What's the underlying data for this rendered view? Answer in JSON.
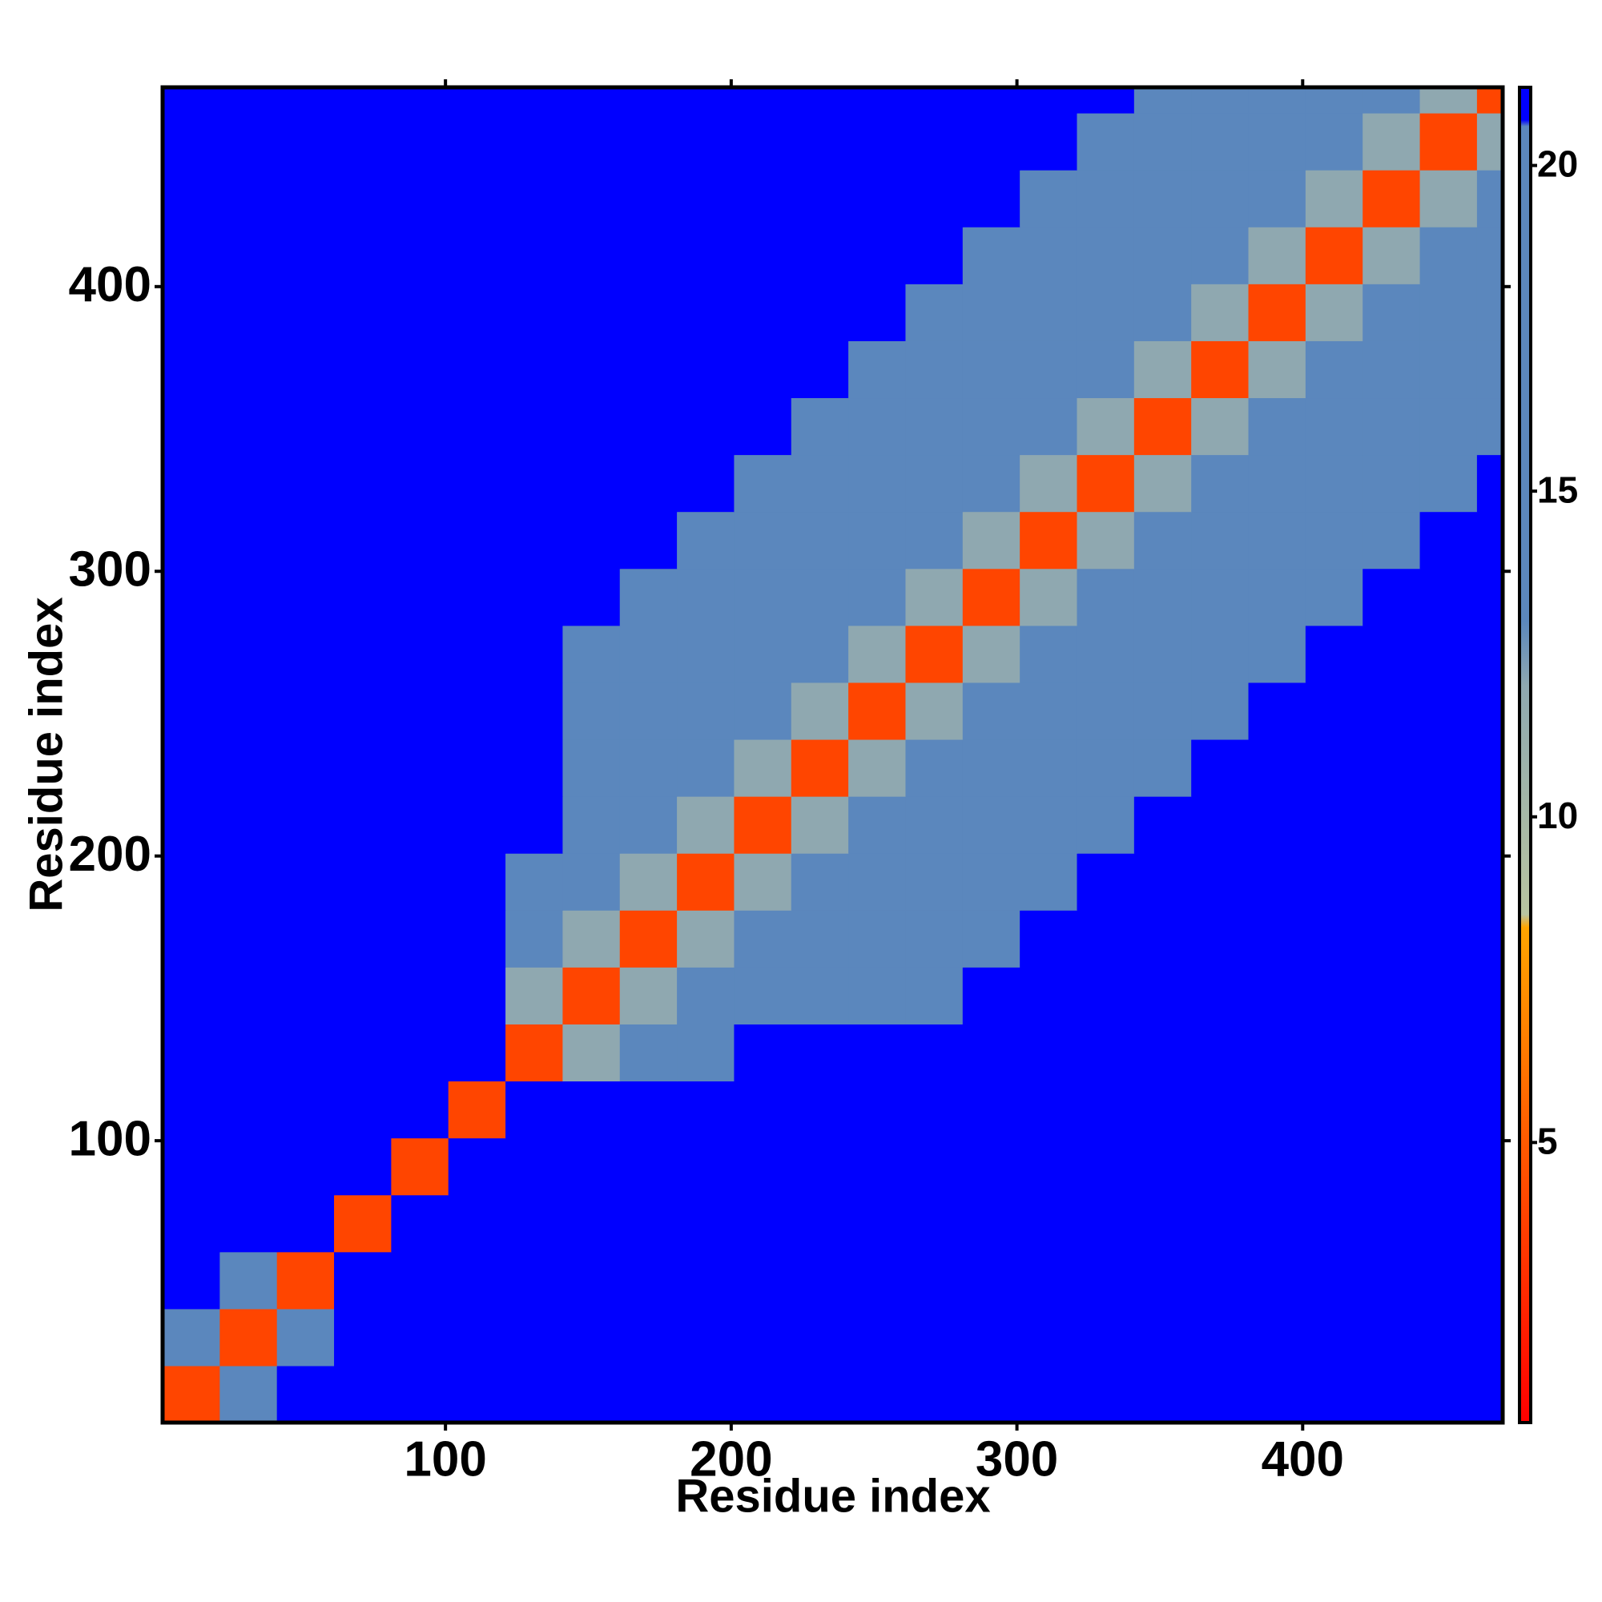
{
  "chart_data": {
    "type": "heatmap",
    "xlabel": "Residue index",
    "ylabel": "Residue index",
    "x_bins": [
      1,
      21,
      41,
      61,
      81,
      101,
      121,
      141,
      161,
      181,
      201,
      221,
      241,
      261,
      281,
      301,
      321,
      341,
      361,
      381,
      401,
      421,
      441,
      461,
      470
    ],
    "y_bins": [
      1,
      21,
      41,
      61,
      81,
      101,
      121,
      141,
      161,
      181,
      201,
      221,
      241,
      261,
      281,
      301,
      321,
      341,
      361,
      381,
      401,
      421,
      441,
      461,
      470
    ],
    "xlim": [
      1,
      470
    ],
    "ylim": [
      1,
      470
    ],
    "xticks": [
      100,
      200,
      300,
      400
    ],
    "yticks": [
      100,
      200,
      300,
      400
    ],
    "zlim": [
      0.7,
      21.2
    ],
    "zticks": [
      5,
      10,
      15,
      20
    ],
    "colorscale": [
      {
        "value": 0.7,
        "color": "#ff0000"
      },
      {
        "value": 5,
        "color": "#ff5a00"
      },
      {
        "value": 8.3,
        "color": "#ffa500"
      },
      {
        "value": 8.5,
        "color": "#b8c4a0"
      },
      {
        "value": 12,
        "color": "#8fa8b0"
      },
      {
        "value": 13,
        "color": "#5b87bd"
      },
      {
        "value": 20.6,
        "color": "#5b87bd"
      },
      {
        "value": 20.7,
        "color": "#0000ff"
      },
      {
        "value": 21.2,
        "color": "#0000ff"
      }
    ],
    "z": [
      [
        4,
        18,
        21,
        21,
        21,
        21,
        21,
        21,
        21,
        21,
        21,
        21,
        21,
        21,
        21,
        21,
        21,
        21,
        21,
        21,
        21,
        21,
        21,
        21
      ],
      [
        18,
        4,
        18,
        21,
        21,
        21,
        21,
        21,
        21,
        21,
        21,
        21,
        21,
        21,
        21,
        21,
        21,
        21,
        21,
        21,
        21,
        21,
        21,
        21
      ],
      [
        21,
        18,
        4,
        21,
        21,
        21,
        21,
        21,
        21,
        21,
        21,
        21,
        21,
        21,
        21,
        21,
        21,
        21,
        21,
        21,
        21,
        21,
        21,
        21
      ],
      [
        21,
        21,
        21,
        4,
        21,
        21,
        21,
        21,
        21,
        21,
        21,
        21,
        21,
        21,
        21,
        21,
        21,
        21,
        21,
        21,
        21,
        21,
        21,
        21
      ],
      [
        21,
        21,
        21,
        21,
        4,
        21,
        21,
        21,
        21,
        21,
        21,
        21,
        21,
        21,
        21,
        21,
        21,
        21,
        21,
        21,
        21,
        21,
        21,
        21
      ],
      [
        21,
        21,
        21,
        21,
        21,
        4,
        21,
        21,
        21,
        21,
        21,
        21,
        21,
        21,
        21,
        21,
        21,
        21,
        21,
        21,
        21,
        21,
        21,
        21
      ],
      [
        21,
        21,
        21,
        21,
        21,
        21,
        4,
        12,
        18,
        18,
        21,
        21,
        21,
        21,
        21,
        21,
        21,
        21,
        21,
        21,
        21,
        21,
        21,
        21
      ],
      [
        21,
        21,
        21,
        21,
        21,
        21,
        12,
        4,
        12,
        18,
        18,
        18,
        18,
        18,
        21,
        21,
        21,
        21,
        21,
        21,
        21,
        21,
        21,
        21
      ],
      [
        21,
        21,
        21,
        21,
        21,
        21,
        18,
        12,
        4,
        12,
        18,
        18,
        18,
        18,
        18,
        21,
        21,
        21,
        21,
        21,
        21,
        21,
        21,
        21
      ],
      [
        21,
        21,
        21,
        21,
        21,
        21,
        18,
        18,
        12,
        4,
        12,
        18,
        18,
        18,
        18,
        18,
        21,
        21,
        21,
        21,
        21,
        21,
        21,
        21
      ],
      [
        21,
        21,
        21,
        21,
        21,
        21,
        21,
        18,
        18,
        12,
        4,
        12,
        18,
        18,
        18,
        18,
        18,
        21,
        21,
        21,
        21,
        21,
        21,
        21
      ],
      [
        21,
        21,
        21,
        21,
        21,
        21,
        21,
        18,
        18,
        18,
        12,
        4,
        12,
        18,
        18,
        18,
        18,
        18,
        21,
        21,
        21,
        21,
        21,
        21
      ],
      [
        21,
        21,
        21,
        21,
        21,
        21,
        21,
        18,
        18,
        18,
        18,
        12,
        4,
        12,
        18,
        18,
        18,
        18,
        18,
        21,
        21,
        21,
        21,
        21
      ],
      [
        21,
        21,
        21,
        21,
        21,
        21,
        21,
        18,
        18,
        18,
        18,
        18,
        12,
        4,
        12,
        18,
        18,
        18,
        18,
        18,
        21,
        21,
        21,
        21
      ],
      [
        21,
        21,
        21,
        21,
        21,
        21,
        21,
        21,
        18,
        18,
        18,
        18,
        18,
        12,
        4,
        12,
        18,
        18,
        18,
        18,
        18,
        21,
        21,
        21
      ],
      [
        21,
        21,
        21,
        21,
        21,
        21,
        21,
        21,
        21,
        18,
        18,
        18,
        18,
        18,
        12,
        4,
        12,
        18,
        18,
        18,
        18,
        18,
        21,
        21
      ],
      [
        21,
        21,
        21,
        21,
        21,
        21,
        21,
        21,
        21,
        21,
        18,
        18,
        18,
        18,
        18,
        12,
        4,
        12,
        18,
        18,
        18,
        18,
        18,
        21
      ],
      [
        21,
        21,
        21,
        21,
        21,
        21,
        21,
        21,
        21,
        21,
        21,
        18,
        18,
        18,
        18,
        18,
        12,
        4,
        12,
        18,
        18,
        18,
        18,
        18
      ],
      [
        21,
        21,
        21,
        21,
        21,
        21,
        21,
        21,
        21,
        21,
        21,
        21,
        18,
        18,
        18,
        18,
        18,
        12,
        4,
        12,
        18,
        18,
        18,
        18
      ],
      [
        21,
        21,
        21,
        21,
        21,
        21,
        21,
        21,
        21,
        21,
        21,
        21,
        21,
        18,
        18,
        18,
        18,
        18,
        12,
        4,
        12,
        18,
        18,
        18
      ],
      [
        21,
        21,
        21,
        21,
        21,
        21,
        21,
        21,
        21,
        21,
        21,
        21,
        21,
        21,
        18,
        18,
        18,
        18,
        18,
        12,
        4,
        12,
        18,
        18
      ],
      [
        21,
        21,
        21,
        21,
        21,
        21,
        21,
        21,
        21,
        21,
        21,
        21,
        21,
        21,
        21,
        18,
        18,
        18,
        18,
        18,
        12,
        4,
        12,
        18
      ],
      [
        21,
        21,
        21,
        21,
        21,
        21,
        21,
        21,
        21,
        21,
        21,
        21,
        21,
        21,
        21,
        21,
        18,
        18,
        18,
        18,
        18,
        12,
        4,
        12
      ],
      [
        21,
        21,
        21,
        21,
        21,
        21,
        21,
        21,
        21,
        21,
        21,
        21,
        21,
        21,
        21,
        21,
        21,
        18,
        18,
        18,
        18,
        18,
        12,
        4
      ]
    ]
  }
}
